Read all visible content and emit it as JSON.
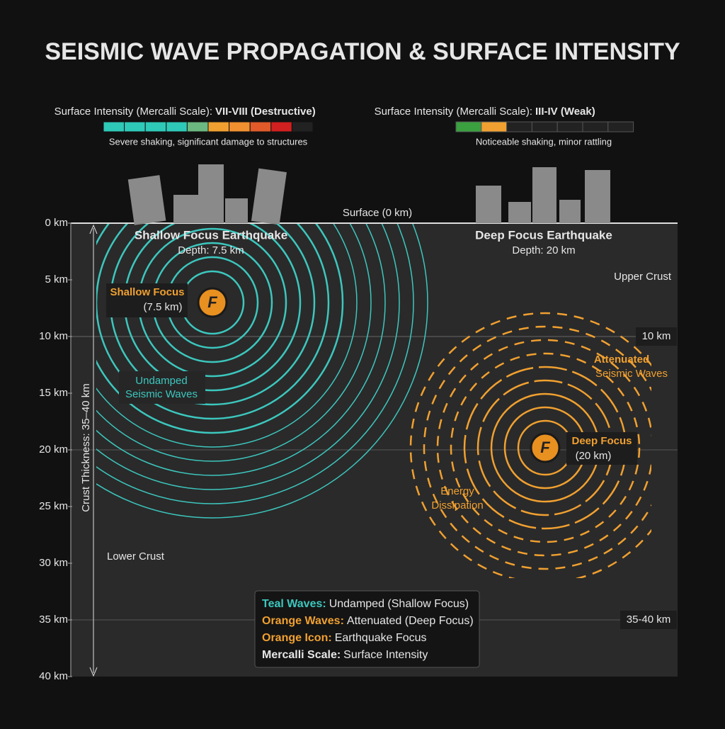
{
  "title": "SEISMIC WAVE PROPAGATION & SURFACE INTENSITY",
  "left_intensity": {
    "label": "Surface Intensity (Mercalli Scale):",
    "level": "VII-VIII (Destructive)",
    "description": "Severe shaking, significant damage to structures"
  },
  "right_intensity": {
    "label": "Surface Intensity (Mercalli Scale):",
    "level": "III-IV (Weak)",
    "description": "Noticeable shaking, minor rattling"
  },
  "surface_label": "Surface (0 km)",
  "depth_labels": [
    "0 km",
    "5 km",
    "10 km",
    "15 km",
    "20 km",
    "25 km",
    "30 km",
    "35 km",
    "40 km"
  ],
  "shallow": {
    "title": "Shallow Focus Earthquake",
    "depth": "Depth: 7.5 km",
    "focus_label": "Shallow Focus",
    "focus_depth": "(7.5 km)",
    "waves_label": [
      "Undamped",
      "Seismic Waves"
    ]
  },
  "deep": {
    "title": "Deep Focus Earthquake",
    "depth": "Depth: 20 km",
    "focus_label": "Deep Focus",
    "focus_depth": "(20 km)",
    "waves_label": [
      "Attenuated",
      "Seismic Waves"
    ],
    "energy_label": [
      "Energy",
      "Dissipation"
    ]
  },
  "focus_icon": "F",
  "layers": {
    "upper_crust": "Upper Crust",
    "lower_crust": "Lower Crust",
    "boundary": "10 km",
    "moho": "35-40 km"
  },
  "crust_thickness": "Crust Thickness: 35–40 km",
  "legend": [
    {
      "key": "Teal Waves:",
      "text": "Undamped (Shallow Focus)"
    },
    {
      "key": "Orange Waves:",
      "text": "Attenuated (Deep Focus)"
    },
    {
      "key": "Orange Icon:",
      "text": "Earthquake Focus"
    },
    {
      "key": "Mercalli Scale:",
      "text": "Surface Intensity"
    }
  ]
}
